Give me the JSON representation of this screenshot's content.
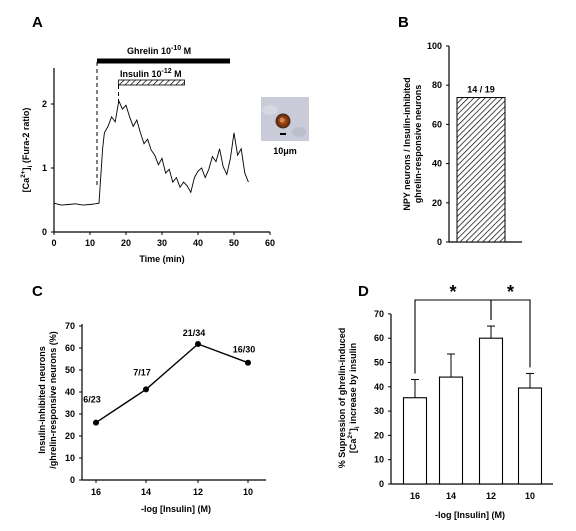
{
  "panels": {
    "a": "A",
    "b": "B",
    "c": "C",
    "d": "D"
  },
  "panel_a": {
    "ylabel_parts": [
      "[Ca",
      "2+",
      "]",
      "i",
      " (Fura-2 ratio)"
    ],
    "xlabel": "Time (min)",
    "ghrelin_label": [
      "Ghrelin 10",
      "-10",
      " M"
    ],
    "insulin_label": [
      "Insulin 10",
      "-12",
      " M"
    ],
    "scale_bar": "10μm"
  },
  "chart_data": [
    {
      "type": "line",
      "panel": "A",
      "xlabel": "Time (min)",
      "ylabel": "[Ca2+]i (Fura-2 ratio)",
      "xlim": [
        0,
        60
      ],
      "ylim": [
        0,
        2.4
      ],
      "xticks": [
        "0",
        "10",
        "20",
        "30",
        "40",
        "50",
        "60"
      ],
      "yticks": [
        "0",
        "1",
        "2"
      ],
      "x": [
        0,
        2,
        4,
        6,
        8,
        10,
        11.5,
        12.5,
        13.5,
        14,
        15,
        16,
        17,
        18,
        19,
        20,
        21,
        22,
        23,
        24,
        25,
        26,
        27,
        28,
        29,
        30,
        31,
        32,
        33,
        34,
        35,
        36,
        37,
        38,
        39,
        40,
        41,
        42,
        43,
        44,
        45,
        46,
        47,
        48,
        49,
        50,
        51,
        52,
        53,
        54
      ],
      "y": [
        0.45,
        0.42,
        0.43,
        0.44,
        0.42,
        0.43,
        0.44,
        0.45,
        1.3,
        1.55,
        1.65,
        1.8,
        1.72,
        2.05,
        1.92,
        1.98,
        1.8,
        1.65,
        1.75,
        1.55,
        1.38,
        1.45,
        1.28,
        1.2,
        1.05,
        1.15,
        0.92,
        0.98,
        0.78,
        0.85,
        0.7,
        0.78,
        0.72,
        0.62,
        0.85,
        0.95,
        1.0,
        0.85,
        0.98,
        1.18,
        1.1,
        1.3,
        1.02,
        0.9,
        1.15,
        1.55,
        1.2,
        1.3,
        0.92,
        0.78
      ],
      "annotations": [
        {
          "label": "Ghrelin 10-10 M",
          "x_start": 12,
          "x_end": 50
        },
        {
          "label": "Insulin 10-12 M",
          "x_start": 18,
          "x_end": 37
        }
      ]
    },
    {
      "type": "bar",
      "panel": "B",
      "ylabel": "NPY neurons / Insulin-inhibited ghrelin-responsive neurons",
      "ylim": [
        0,
        100
      ],
      "yticks": [
        "0",
        "20",
        "40",
        "60",
        "80",
        "100"
      ],
      "categories": [
        ""
      ],
      "values": [
        73.7
      ],
      "data_labels": [
        "14 / 19"
      ]
    },
    {
      "type": "line",
      "panel": "C",
      "xlabel": "-log [Insulin] (M)",
      "ylabel": "Insulin-inhibited neurons /ghrelin-responsive neurons (%)",
      "ylim": [
        0,
        70
      ],
      "yticks": [
        "0",
        "10",
        "20",
        "30",
        "40",
        "50",
        "60",
        "70"
      ],
      "categories": [
        "16",
        "14",
        "12",
        "10"
      ],
      "values": [
        26.1,
        41.2,
        61.8,
        53.3
      ],
      "data_labels": [
        "6/23",
        "7/17",
        "21/34",
        "16/30"
      ]
    },
    {
      "type": "bar",
      "panel": "D",
      "xlabel": "-log [Insulin] (M)",
      "ylabel": "% Supression of ghrelin-induced [Ca2+]i increase by insulin",
      "ylim": [
        0,
        70
      ],
      "yticks": [
        "0",
        "10",
        "20",
        "30",
        "40",
        "50",
        "60",
        "70"
      ],
      "categories": [
        "16",
        "14",
        "12",
        "10"
      ],
      "values": [
        35.5,
        44,
        60,
        39.5
      ],
      "errors": [
        7.5,
        9.5,
        5,
        6
      ],
      "significance": [
        {
          "from": "16",
          "to": "12",
          "label": "*"
        },
        {
          "from": "12",
          "to": "10",
          "label": "*"
        }
      ]
    }
  ]
}
